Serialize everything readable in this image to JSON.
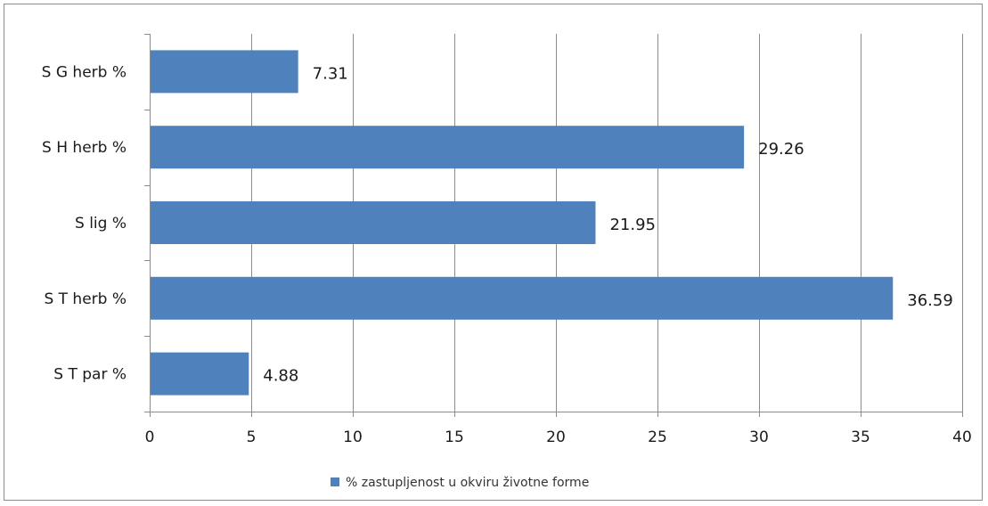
{
  "chart_data": {
    "type": "bar",
    "orientation": "horizontal",
    "categories": [
      "S G herb %",
      "S H herb %",
      "S lig %",
      "S T herb %",
      "S T par %"
    ],
    "series": [
      {
        "name": "% zastupljenost u okviru životne forme",
        "values": [
          7.31,
          29.26,
          21.95,
          36.59,
          4.88
        ],
        "color": "#4f81bd"
      }
    ],
    "data_labels": [
      "7.31",
      "29.26",
      "21.95",
      "36.59",
      "4.88"
    ],
    "xlim": [
      0,
      40
    ],
    "xticks": [
      0,
      5,
      10,
      15,
      20,
      25,
      30,
      35,
      40
    ],
    "xtick_labels": [
      "0",
      "5",
      "10",
      "15",
      "20",
      "25",
      "30",
      "35",
      "40"
    ],
    "title": "",
    "xlabel": "",
    "ylabel": "",
    "grid": "vertical",
    "legend_position": "bottom"
  }
}
